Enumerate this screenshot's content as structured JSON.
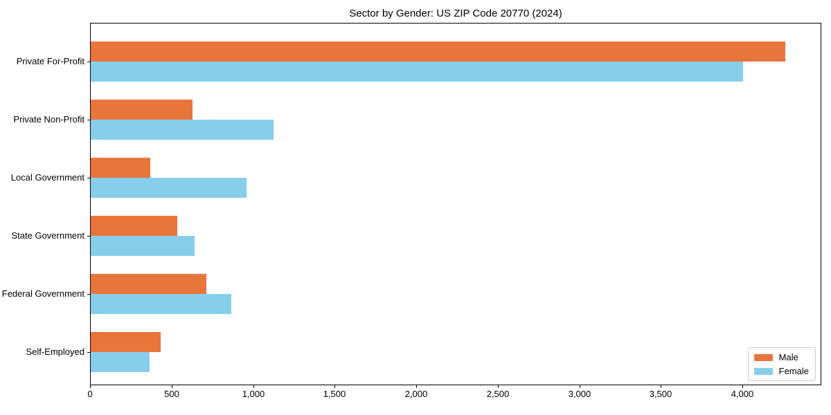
{
  "chart_data": {
    "type": "bar",
    "orientation": "horizontal",
    "title": "Sector by Gender: US ZIP Code 20770 (2024)",
    "categories": [
      "Private For-Profit",
      "Private Non-Profit",
      "Local Government",
      "State Government",
      "Federal Government",
      "Self-Employed"
    ],
    "series": [
      {
        "name": "Male",
        "color": "#e8763c",
        "values": [
          4260,
          625,
          365,
          530,
          710,
          430
        ]
      },
      {
        "name": "Female",
        "color": "#87ceeb",
        "values": [
          4000,
          1120,
          955,
          635,
          860,
          360
        ]
      }
    ],
    "xlabel": "",
    "ylabel": "",
    "xlim": [
      0,
      4475
    ],
    "xticks": [
      0,
      500,
      1000,
      1500,
      2000,
      2500,
      3000,
      3500,
      4000
    ],
    "xtick_labels": [
      "0",
      "500",
      "1,000",
      "1,500",
      "2,000",
      "2,500",
      "3,000",
      "3,500",
      "4,000"
    ],
    "grid": false,
    "legend_position": "lower right",
    "colors": {
      "male": "#e8763c",
      "female": "#87ceeb",
      "spine": "#000000",
      "background": "#ffffff"
    }
  }
}
